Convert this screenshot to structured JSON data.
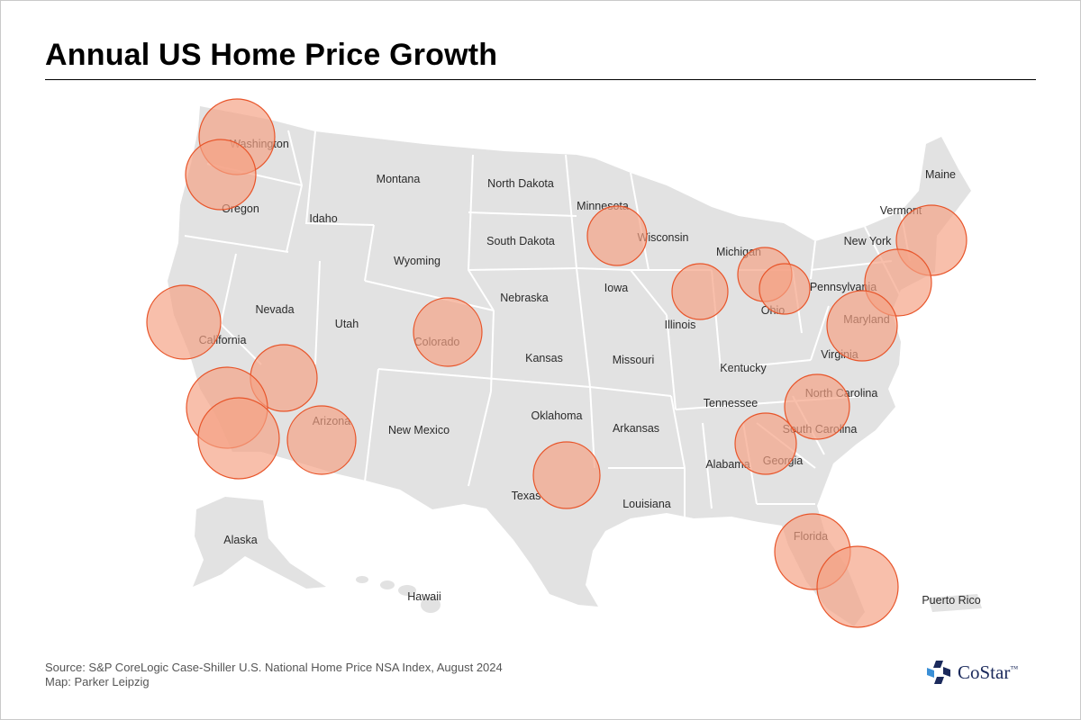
{
  "title": "Annual US Home Price Growth",
  "source_line": "Source: S&P CoreLogic Case-Shiller U.S. National Home Price NSA Index, August 2024",
  "credit_line": "Map: Parker Leipzig",
  "logo": {
    "text": "CoStar",
    "trademark": "™",
    "icon": "costar-star-icon"
  },
  "colors": {
    "land": "#e2e2e2",
    "border": "#ffffff",
    "bubble_fill": "#f4a083",
    "bubble_stroke": "#e8552a",
    "title_rule": "#000000"
  },
  "state_labels": [
    {
      "id": "washington",
      "text": "Washington"
    },
    {
      "id": "oregon",
      "text": "Oregon"
    },
    {
      "id": "idaho",
      "text": "Idaho"
    },
    {
      "id": "montana",
      "text": "Montana"
    },
    {
      "id": "north-dakota",
      "text": "North Dakota"
    },
    {
      "id": "minnesota",
      "text": "Minnesota"
    },
    {
      "id": "wisconsin",
      "text": "Wisconsin"
    },
    {
      "id": "michigan",
      "text": "Michigan"
    },
    {
      "id": "maine",
      "text": "Maine"
    },
    {
      "id": "vermont",
      "text": "Vermont"
    },
    {
      "id": "new-york",
      "text": "New York"
    },
    {
      "id": "south-dakota",
      "text": "South Dakota"
    },
    {
      "id": "wyoming",
      "text": "Wyoming"
    },
    {
      "id": "nevada",
      "text": "Nevada"
    },
    {
      "id": "utah",
      "text": "Utah"
    },
    {
      "id": "california",
      "text": "California"
    },
    {
      "id": "colorado",
      "text": "Colorado"
    },
    {
      "id": "nebraska",
      "text": "Nebraska"
    },
    {
      "id": "iowa",
      "text": "Iowa"
    },
    {
      "id": "illinois",
      "text": "Illinois"
    },
    {
      "id": "ohio",
      "text": "Ohio"
    },
    {
      "id": "pennsylvania",
      "text": "Pennsylvania"
    },
    {
      "id": "maryland",
      "text": "Maryland"
    },
    {
      "id": "virginia",
      "text": "Virginia"
    },
    {
      "id": "kansas",
      "text": "Kansas"
    },
    {
      "id": "missouri",
      "text": "Missouri"
    },
    {
      "id": "kentucky",
      "text": "Kentucky"
    },
    {
      "id": "north-carolina",
      "text": "North Carolina"
    },
    {
      "id": "tennessee",
      "text": "Tennessee"
    },
    {
      "id": "south-carolina",
      "text": "South Carolina"
    },
    {
      "id": "arizona",
      "text": "Arizona"
    },
    {
      "id": "new-mexico",
      "text": "New Mexico"
    },
    {
      "id": "oklahoma",
      "text": "Oklahoma"
    },
    {
      "id": "arkansas",
      "text": "Arkansas"
    },
    {
      "id": "alabama",
      "text": "Alabama"
    },
    {
      "id": "georgia",
      "text": "Georgia"
    },
    {
      "id": "texas",
      "text": "Texas"
    },
    {
      "id": "louisiana",
      "text": "Louisiana"
    },
    {
      "id": "florida",
      "text": "Florida"
    },
    {
      "id": "alaska",
      "text": "Alaska"
    },
    {
      "id": "hawaii",
      "text": "Hawaii"
    },
    {
      "id": "puerto-rico",
      "text": "Puerto Rico"
    }
  ],
  "metros": [
    {
      "id": "seattle"
    },
    {
      "id": "portland"
    },
    {
      "id": "san-francisco"
    },
    {
      "id": "las-vegas"
    },
    {
      "id": "los-angeles"
    },
    {
      "id": "san-diego"
    },
    {
      "id": "phoenix"
    },
    {
      "id": "denver"
    },
    {
      "id": "minneapolis"
    },
    {
      "id": "dallas"
    },
    {
      "id": "chicago"
    },
    {
      "id": "detroit"
    },
    {
      "id": "cleveland"
    },
    {
      "id": "boston"
    },
    {
      "id": "new-york"
    },
    {
      "id": "washington-dc"
    },
    {
      "id": "charlotte"
    },
    {
      "id": "atlanta"
    },
    {
      "id": "tampa"
    },
    {
      "id": "miami"
    }
  ]
}
